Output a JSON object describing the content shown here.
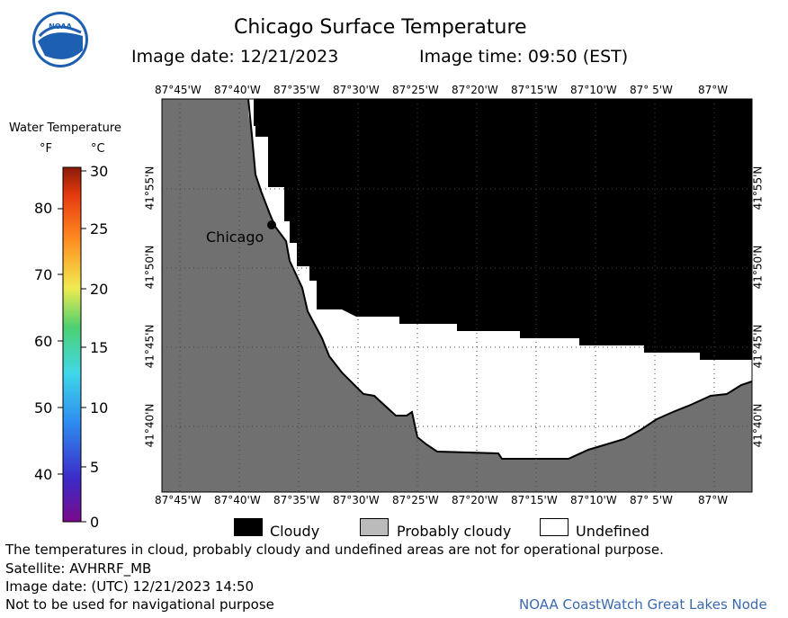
{
  "header": {
    "title": "Chicago Surface Temperature",
    "image_date_label": "Image date: 12/21/2023",
    "image_time_label": "Image time: 09:50 (EST)"
  },
  "logo": {
    "text": "NOAA"
  },
  "map": {
    "top_lon_labels": [
      "87°45'W",
      "87°40'W",
      "87°35'W",
      "87°30'W",
      "87°25'W",
      "87°20'W",
      "87°15'W",
      "87°10'W",
      "87° 5'W",
      "87°W"
    ],
    "bottom_lon_labels": [
      "87°45'W",
      "87°40'W",
      "87°35'W",
      "87°30'W",
      "87°25'W",
      "87°20'W",
      "87°15'W",
      "87°10'W",
      "87° 5'W",
      "87°W"
    ],
    "lat_labels": [
      "41°55'N",
      "41°50'N",
      "41°45'N",
      "41°40'N"
    ],
    "city_label": "Chicago",
    "colors": {
      "land": "#707070",
      "cloudy": "#000000",
      "undefined": "#ffffff",
      "probably_cloudy": "#bbbbbb"
    }
  },
  "temperature_scale": {
    "title": "Water Temperature",
    "unit_f": "°F",
    "unit_c": "°C",
    "f_ticks": [
      "80",
      "70",
      "60",
      "50",
      "40"
    ],
    "c_ticks": [
      "30",
      "25",
      "20",
      "15",
      "10",
      "5",
      "0"
    ]
  },
  "legend": {
    "cloudy": "Cloudy",
    "probably_cloudy": "Probably cloudy",
    "undefined": "Undefined"
  },
  "footer": {
    "disclaimer": "The temperatures in cloud, probably cloudy and undefined areas are not for operational purpose.",
    "satellite": "Satellite: AVHRRF_MB",
    "utc_date": "Image date: (UTC) 12/21/2023  14:50",
    "nav_warning": "Not to be used for navigational purpose",
    "source": "NOAA CoastWatch Great Lakes Node"
  }
}
